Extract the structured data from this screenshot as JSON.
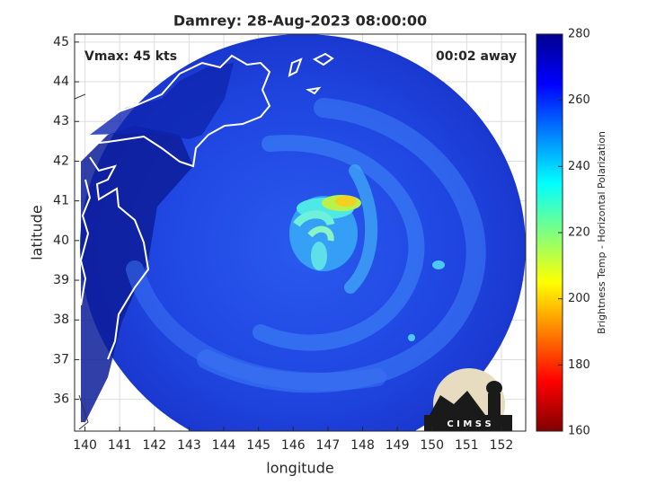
{
  "chart_data": {
    "type": "map",
    "title": "Damrey: 28-Aug-2023 08:00:00",
    "annotations": [
      "Vmax: 45 kts",
      "00:02 away"
    ],
    "xlabel": "longitude",
    "ylabel": "latitude",
    "xlim": [
      139.7,
      152.7
    ],
    "ylim": [
      35.2,
      45.2
    ],
    "xticks": [
      140,
      141,
      142,
      143,
      144,
      145,
      146,
      147,
      148,
      149,
      150,
      151,
      152
    ],
    "yticks": [
      36,
      37,
      38,
      39,
      40,
      41,
      42,
      43,
      44,
      45
    ],
    "grid": true,
    "colorbar": {
      "label": "Brightness Temp - Horizontal Polarization",
      "lim": [
        160,
        280
      ],
      "ticks": [
        160,
        180,
        200,
        220,
        240,
        260,
        280
      ],
      "colormap": "jet"
    },
    "logo_text": "C I M S S"
  }
}
